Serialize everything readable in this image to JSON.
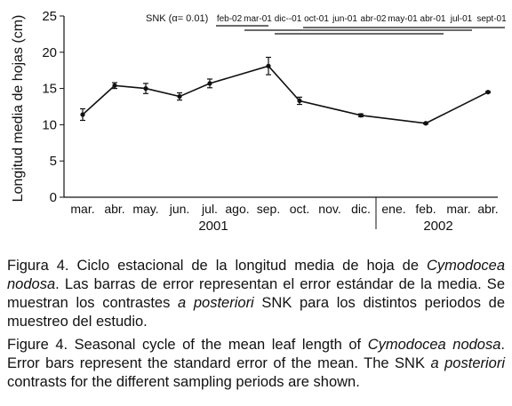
{
  "chart_data": {
    "type": "line",
    "ylabel": "Longitud media de hojas (cm)",
    "ylim": [
      0,
      25
    ],
    "yticks": [
      0,
      5,
      10,
      15,
      20,
      25
    ],
    "x_ticks": [
      "mar.",
      "abr.",
      "may.",
      "jun.",
      "jul.",
      "ago.",
      "sep.",
      "oct.",
      "nov.",
      "dic.",
      "ene.",
      "feb.",
      "mar.",
      "abr."
    ],
    "year_labels": [
      "2001",
      "2002"
    ],
    "points": [
      {
        "x": "mar. 2001",
        "y": 11.4,
        "se": 0.8
      },
      {
        "x": "abr. 2001",
        "y": 15.4,
        "se": 0.4
      },
      {
        "x": "may. 2001",
        "y": 15.0,
        "se": 0.7
      },
      {
        "x": "jun. 2001",
        "y": 13.9,
        "se": 0.5
      },
      {
        "x": "jul. 2001",
        "y": 15.7,
        "se": 0.6
      },
      {
        "x": "sep. 2001",
        "y": 18.1,
        "se": 1.2
      },
      {
        "x": "oct. 2001",
        "y": 13.3,
        "se": 0.5
      },
      {
        "x": "dic. 2001",
        "y": 11.3,
        "se": 0.2
      },
      {
        "x": "feb. 2002",
        "y": 10.2,
        "se": 0.1
      },
      {
        "x": "abr. 2002",
        "y": 14.5,
        "se": 0.1
      }
    ],
    "snk": {
      "title": "SNK (α= 0.01)",
      "groups": [
        "feb-02",
        "mar-01",
        "dic--01",
        "oct-01",
        "jun-01",
        "abr-02",
        "may-01",
        "abr-01",
        "jul-01",
        "sept-01"
      ],
      "lines": [
        [
          0,
          1
        ],
        [
          1,
          8
        ],
        [
          2,
          7
        ],
        [
          3,
          9
        ]
      ]
    }
  },
  "caption_es": {
    "label": "Figura 4",
    "text_1": ". Ciclo estacional de la longitud media de hoja de ",
    "species": "Cymodocea nodosa",
    "text_2": ". Las barras de error representan el error estándar de la media. Se muestran los contrastes ",
    "italic_term": "a posteriori",
    "text_3": " SNK para los distintos periodos de muestreo del estudio."
  },
  "caption_en": {
    "label": "Figure 4",
    "text_1": ". Seasonal cycle of the mean leaf length of ",
    "species": "Cymodocea nodosa",
    "text_2": ". Error bars represent the standard error of the mean. The SNK ",
    "italic_term": "a posteriori",
    "text_3": " contrasts for the different sampling periods are shown."
  }
}
